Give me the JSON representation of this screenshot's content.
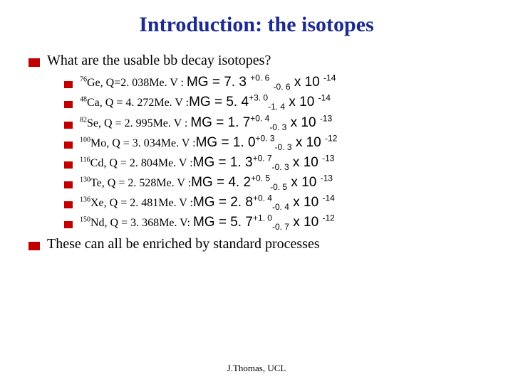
{
  "title": "Introduction: the isotopes",
  "q1": "What are the usable bb  decay isotopes?",
  "closing": "These can all be enriched by standard processes",
  "footer": "J.Thomas, UCL",
  "colors": {
    "title": "#1d2a8f",
    "bullet": "#c00000",
    "text": "#000000",
    "background": "#ffffff"
  },
  "fonts": {
    "title_size": 30,
    "body_size": 20,
    "prefix_size": 16,
    "mg_size": 19,
    "footer_size": 13
  },
  "isotopes": [
    {
      "mass": "76",
      "sym": "Ge",
      "qsep": ", Q=",
      "qval": "2. 038Me. V",
      "colon": " : ",
      "central": "7. 3 ",
      "hi": "+0. 6",
      "hisp": " ",
      "lo": "-0. 6",
      "losp": " ",
      "exp": "-14"
    },
    {
      "mass": "48",
      "sym": "Ca",
      "qsep": ", Q = ",
      "qval": "4. 272Me. V",
      "colon": " :",
      "central": "5. 4",
      "hi": "+3. 0",
      "hisp": "",
      "lo": "-1. 4",
      "losp": " ",
      "exp": "-14"
    },
    {
      "mass": "82",
      "sym": "Se",
      "qsep": ", Q = ",
      "qval": "2. 995Me. V",
      "colon": " : ",
      "central": "1. 7",
      "hi": "+0. 4",
      "hisp": "",
      "lo": "-0. 3",
      "losp": " ",
      "exp": "-13"
    },
    {
      "mass": "100",
      "sym": "Mo",
      "qsep": ", Q = ",
      "qval": "3. 034Me. V",
      "colon": " :",
      "central": "1. 0",
      "hi": "+0. 3",
      "hisp": "",
      "lo": "-0. 3",
      "losp": " ",
      "exp": "-12"
    },
    {
      "mass": "116",
      "sym": "Cd",
      "qsep": ", Q = ",
      "qval": "2. 804Me. V",
      "colon": " :",
      "central": "1. 3",
      "hi": "+0. 7",
      "hisp": "",
      "lo": "-0. 3",
      "losp": " ",
      "exp": "-13"
    },
    {
      "mass": "130",
      "sym": "Te",
      "qsep": ", Q = ",
      "qval": "2. 528Me. V",
      "colon": " :",
      "central": "4. 2",
      "hi": "+0. 5",
      "hisp": "",
      "lo": "-0. 5",
      "losp": " ",
      "exp": "-13"
    },
    {
      "mass": "136",
      "sym": "Xe",
      "qsep": ", Q = ",
      "qval": "2. 481Me. V",
      "colon": " :",
      "central": "2. 8",
      "hi": "+0. 4",
      "hisp": "",
      "lo": "-0. 4",
      "losp": " ",
      "exp": "-14"
    },
    {
      "mass": "150",
      "sym": "Nd",
      "qsep": ", Q = ",
      "qval": "3. 368Me. V:",
      "colon": " ",
      "central": "5. 7",
      "hi": "+1. 0",
      "hisp": "",
      "lo": "-0. 7",
      "losp": " ",
      "exp": "-12"
    }
  ],
  "mg_label": "MG = ",
  "times_label": "x 10 "
}
